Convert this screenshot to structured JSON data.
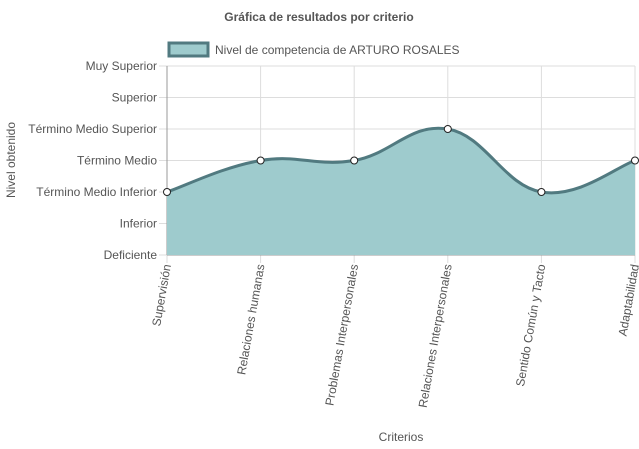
{
  "chart_data": {
    "type": "area",
    "title": "Gráfica de resultados por criterio",
    "xlabel": "Criterios",
    "ylabel": "Nivel obtenido",
    "categories": [
      "Supervisión",
      "Relaciones humanas",
      "Problemas Interpersonales",
      "Relaciones Interpersonales",
      "Sentido Común y Tacto",
      "Adaptabilidad"
    ],
    "levels": [
      "Deficiente",
      "Inferior",
      "Término Medio Inferior",
      "Término Medio",
      "Término Medio Superior",
      "Superior",
      "Muy Superior"
    ],
    "ylim": [
      0,
      6
    ],
    "series": [
      {
        "name": "Nivel de competencia de ARTURO ROSALES",
        "values": [
          2,
          3,
          3,
          4,
          2,
          3
        ],
        "fill_color": "#9ecbcd",
        "line_color": "#517a80",
        "point_fill": "#ffffff"
      }
    ],
    "grid": true,
    "legend_position": "top-left",
    "x_tick_rotation": "vertical"
  }
}
